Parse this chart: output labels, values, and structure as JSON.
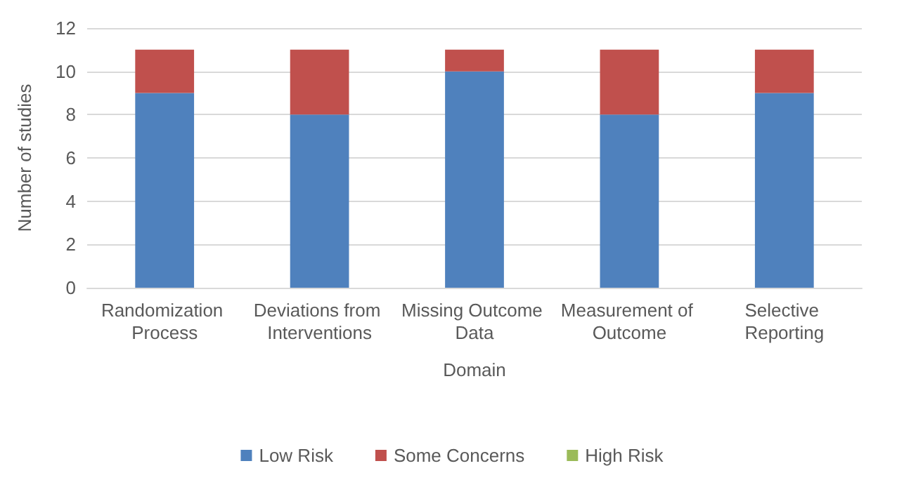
{
  "chart_data": {
    "type": "bar",
    "stacked": true,
    "xlabel": "Domain",
    "ylabel": "Number of studies",
    "categories": [
      "Randomization Process",
      "Deviations from Interventions",
      "Missing Outcome Data",
      "Measurement of Outcome",
      "Selective Reporting"
    ],
    "series": [
      {
        "name": "Low Risk",
        "color": "#4f81bd",
        "values": [
          9,
          8,
          10,
          8,
          9
        ]
      },
      {
        "name": "Some Concerns",
        "color": "#c0504d",
        "values": [
          2,
          3,
          1,
          3,
          2
        ]
      },
      {
        "name": "High Risk",
        "color": "#9bbb59",
        "values": [
          0,
          0,
          0,
          0,
          0
        ]
      }
    ],
    "ylim": [
      0,
      12
    ],
    "yticks": [
      0,
      2,
      4,
      6,
      8,
      10,
      12
    ],
    "grid": "y",
    "legend": "bottom"
  }
}
